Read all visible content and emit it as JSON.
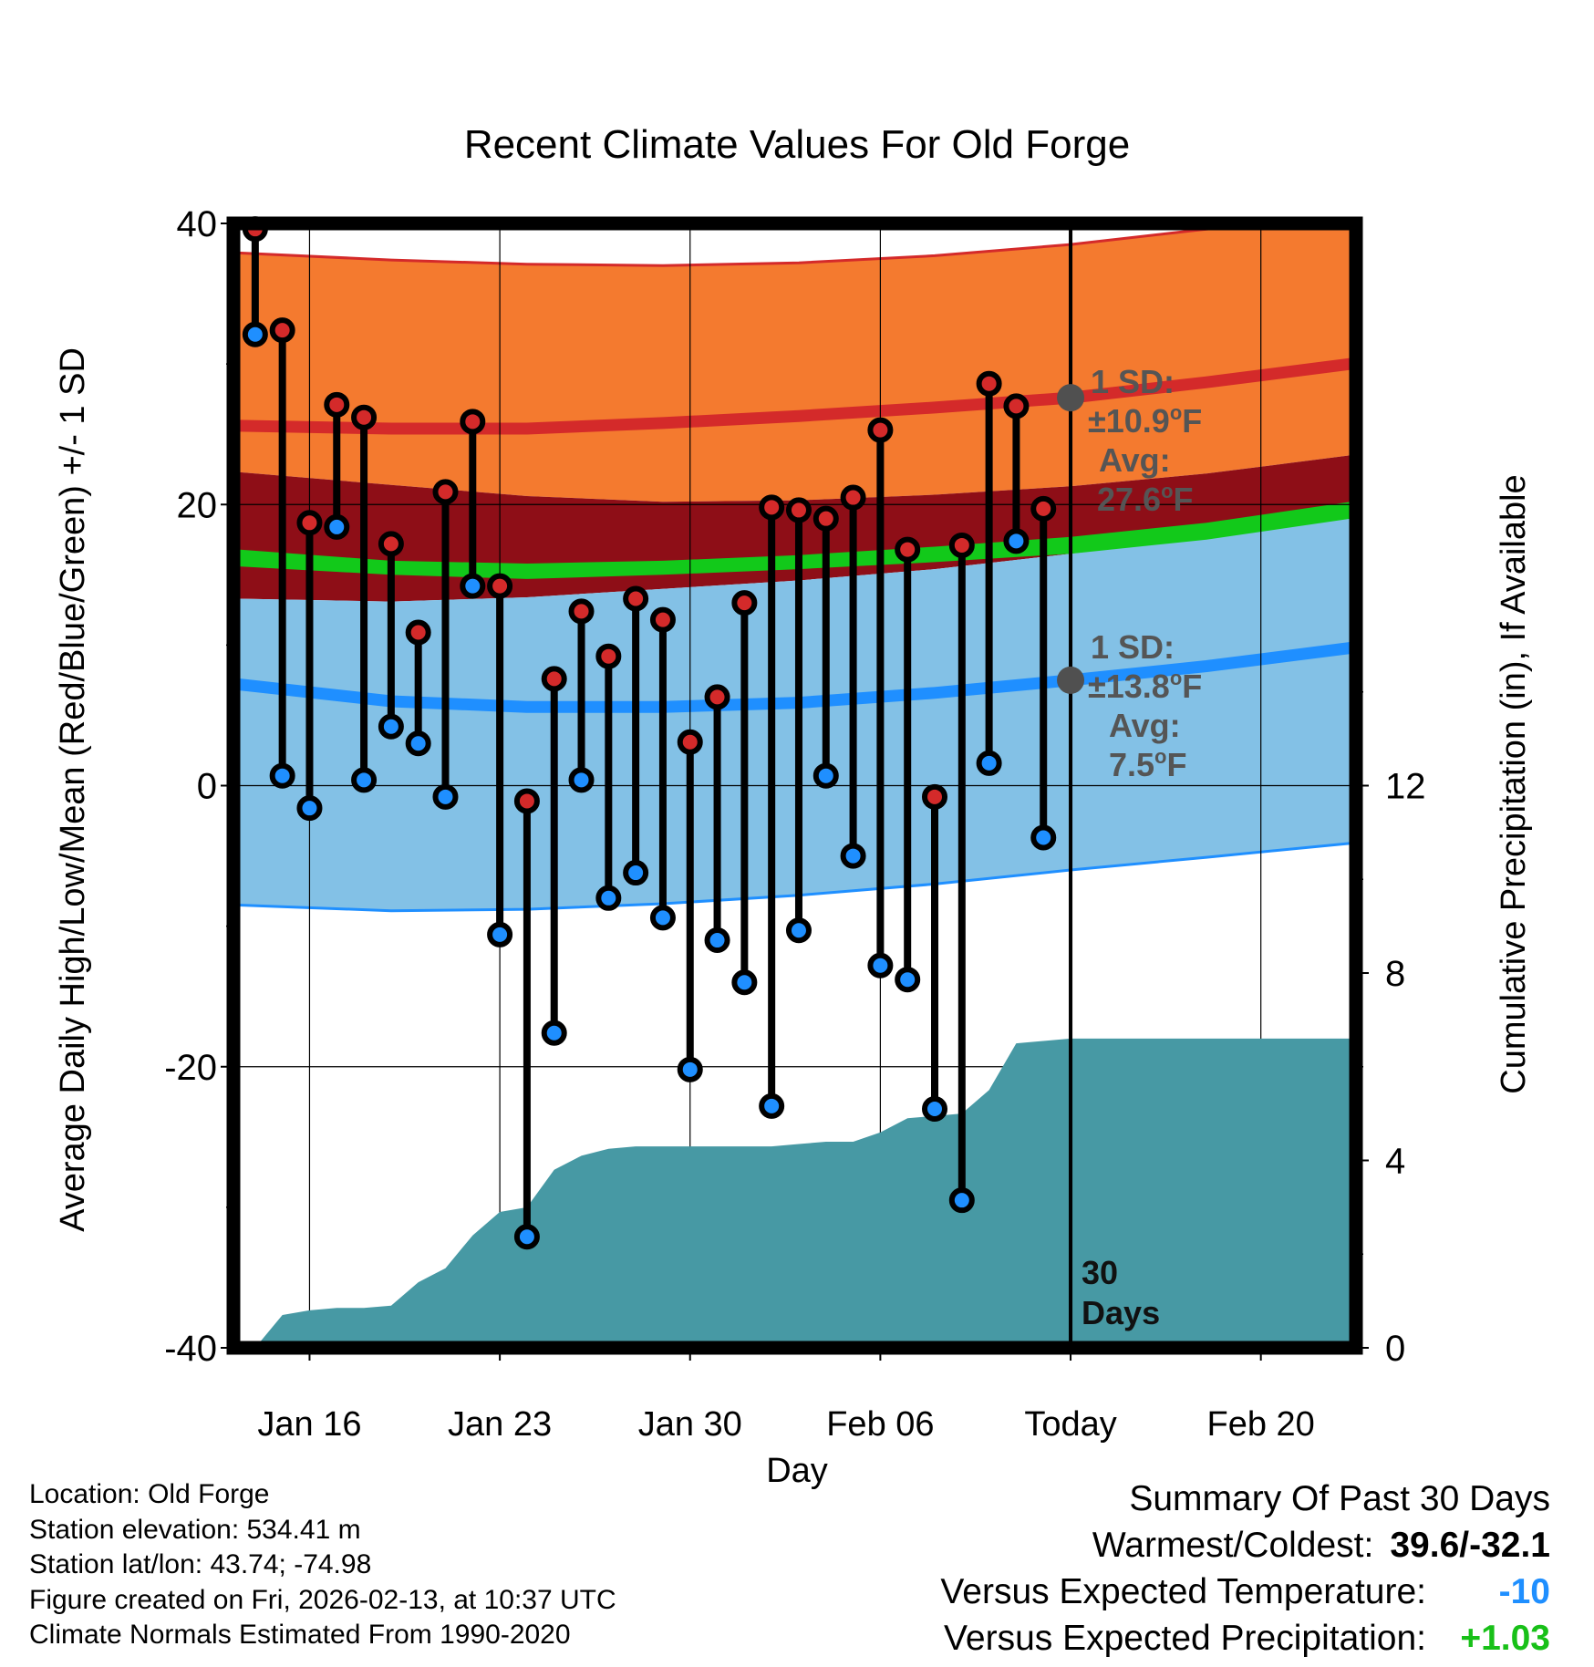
{
  "chart_data": {
    "type": "range-dot",
    "title": "Recent Climate Values For Old Forge",
    "xlabel": "Day",
    "ylabel_left": "Average Daily High/Low/Mean (Red/Blue/Green) +/- 1 SD",
    "ylabel_right": "Cumulative Precipitation (in), If Available",
    "ylim": [
      -40,
      40
    ],
    "yticks": [
      40,
      20,
      0,
      -20,
      -40
    ],
    "y2lim": [
      0,
      24
    ],
    "y2ticks": [
      12,
      8,
      4,
      0
    ],
    "xlim": [
      -0.8,
      40.5
    ],
    "xticks": [
      {
        "day": 2,
        "label": "Jan 16"
      },
      {
        "day": 9,
        "label": "Jan 23"
      },
      {
        "day": 16,
        "label": "Jan 30"
      },
      {
        "day": 23,
        "label": "Feb 06"
      },
      {
        "day": 30,
        "label": "Today"
      },
      {
        "day": 37,
        "label": "Feb 20"
      }
    ],
    "today_day": 30,
    "days_label": "30",
    "days_label_2": "Days",
    "highs": [
      39.6,
      32.4,
      18.7,
      27.1,
      26.2,
      17.2,
      10.9,
      20.9,
      25.9,
      14.2,
      -1.1,
      7.6,
      12.4,
      9.2,
      13.3,
      11.8,
      3.1,
      6.3,
      13.0,
      19.8,
      19.6,
      19.0,
      20.5,
      25.3,
      16.8,
      -0.8,
      17.1,
      28.6,
      27.0,
      19.7
    ],
    "lows": [
      32.1,
      0.7,
      -1.6,
      18.4,
      0.4,
      4.2,
      3.0,
      -0.8,
      14.2,
      -10.6,
      -32.1,
      -17.6,
      0.4,
      -8.0,
      -6.2,
      -9.4,
      -20.2,
      -11.0,
      -14.0,
      -22.8,
      -10.3,
      0.7,
      -5.0,
      -12.8,
      -13.8,
      -23.0,
      -29.5,
      1.6,
      17.4,
      -3.7
    ],
    "normals": {
      "x": [
        -0.6,
        5,
        10,
        15,
        20,
        25,
        30,
        35,
        40.3
      ],
      "high_upper": [
        37.9,
        37.4,
        37.1,
        37.0,
        37.2,
        37.7,
        38.5,
        39.6,
        41.0
      ],
      "high_avg": [
        25.6,
        25.4,
        25.4,
        25.8,
        26.3,
        26.9,
        27.6,
        28.7,
        30.0
      ],
      "high_lower": [
        22.3,
        21.4,
        20.6,
        20.2,
        20.3,
        20.7,
        21.3,
        22.2,
        23.5
      ],
      "mean_upper": [
        16.8,
        16.0,
        15.8,
        16.0,
        16.4,
        17.0,
        17.7,
        18.7,
        20.2
      ],
      "mean_lower": [
        15.6,
        15.0,
        14.7,
        15.0,
        15.4,
        15.9,
        16.5,
        17.5,
        19.0
      ],
      "low_upper": [
        13.3,
        13.1,
        13.4,
        14.0,
        14.6,
        15.4,
        16.5,
        17.6,
        19.1
      ],
      "low_avg": [
        7.2,
        6.0,
        5.6,
        5.6,
        5.9,
        6.6,
        7.5,
        8.5,
        9.8
      ],
      "low_lower": [
        -8.5,
        -8.9,
        -8.8,
        -8.4,
        -7.8,
        -7.0,
        -6.0,
        -5.1,
        -4.1
      ]
    },
    "precip": {
      "x": [
        0,
        1,
        2,
        3,
        4,
        5,
        6,
        7,
        8,
        9,
        10,
        11,
        12,
        13,
        14,
        15,
        16,
        17,
        18,
        19,
        20,
        21,
        22,
        23,
        24,
        25,
        26,
        27,
        28,
        29,
        30,
        40.3
      ],
      "values": [
        0.0,
        0.7,
        0.8,
        0.85,
        0.85,
        0.9,
        1.4,
        1.7,
        2.4,
        2.9,
        3.0,
        3.8,
        4.1,
        4.25,
        4.3,
        4.3,
        4.3,
        4.3,
        4.3,
        4.3,
        4.35,
        4.4,
        4.4,
        4.6,
        4.9,
        4.95,
        5.0,
        5.5,
        6.5,
        6.55,
        6.6,
        6.6
      ]
    },
    "annotations": {
      "high_sd": "1 SD:",
      "high_sd_value": "±10.9",
      "high_avg_label": "Avg:",
      "high_avg_value": "27.6",
      "low_sd": "1 SD:",
      "low_sd_value": "±13.8",
      "low_avg_label": "Avg:",
      "low_avg_value": "7.5",
      "degree_symbol": "o",
      "unit": "F",
      "high_avg_marker": 27.6,
      "low_avg_marker": 7.5
    },
    "colors": {
      "high_band": "#f47a2f",
      "high_avg": "#d42a2a",
      "high_edge": "#d42a2a",
      "mean_band": "#8e0e17",
      "mean_line": "#12c91a",
      "low_band": "#83c1e6",
      "low_avg": "#1f8fff",
      "low_edge": "#1f8fff",
      "precip": "#4799a4",
      "high_dot": "#d42a2a",
      "low_dot": "#1f8fff",
      "marker": "#505050",
      "annotation_text": "#555555"
    }
  },
  "footer": {
    "location": "Location: Old Forge",
    "elevation": "Station elevation: 534.41 m",
    "latlon": "Station lat/lon: 43.74; -74.98",
    "created": "Figure created on Fri, 2026-02-13, at 10:37 UTC",
    "normals": "Climate Normals Estimated From 1990-2020"
  },
  "summary": {
    "title": "Summary Of Past 30 Days",
    "warmest_label": "Warmest/Coldest:",
    "warmest_value": "39.6/-32.1",
    "temp_label": "Versus Expected Temperature:",
    "temp_value": "-10",
    "temp_color": "#1f8fff",
    "precip_label": "Versus Expected Precipitation:",
    "precip_value": "+1.03",
    "precip_color": "#18c018"
  }
}
